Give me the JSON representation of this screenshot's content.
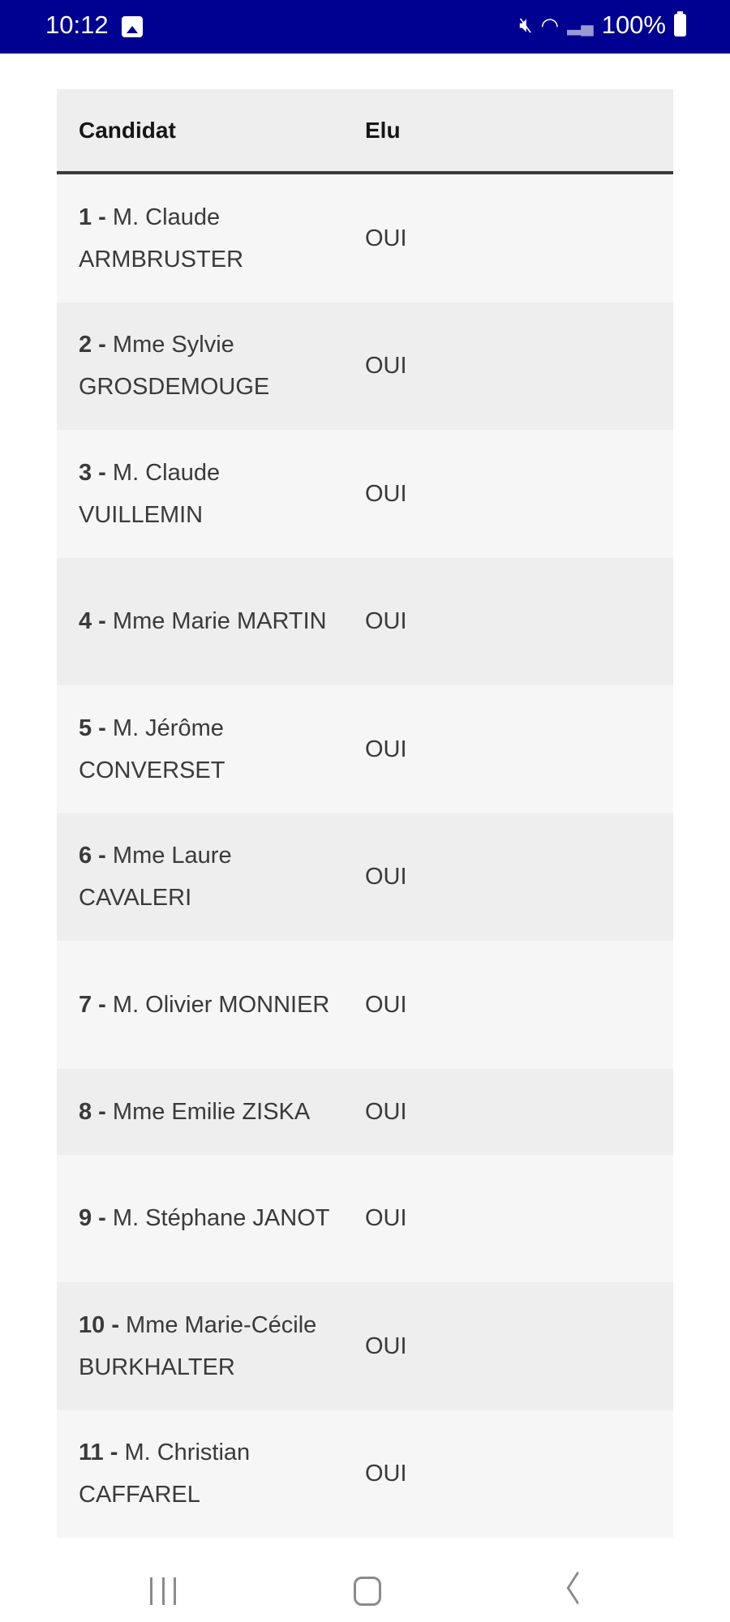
{
  "status_bar": {
    "time": "10:12",
    "battery": "100%"
  },
  "table": {
    "headers": {
      "candidate": "Candidat",
      "elected": "Elu"
    },
    "rows": [
      {
        "num": "1 -",
        "name": "M. Claude ARMBRUSTER",
        "elected": "OUI"
      },
      {
        "num": "2 -",
        "name": "Mme Sylvie GROSDEMOUGE",
        "elected": "OUI"
      },
      {
        "num": "3 -",
        "name": "M. Claude VUILLEMIN",
        "elected": "OUI"
      },
      {
        "num": "4 -",
        "name": "Mme Marie MARTIN",
        "elected": "OUI"
      },
      {
        "num": "5 -",
        "name": "M. Jérôme CONVERSET",
        "elected": "OUI"
      },
      {
        "num": "6 -",
        "name": "Mme Laure CAVALERI",
        "elected": "OUI"
      },
      {
        "num": "7 -",
        "name": "M. Olivier MONNIER",
        "elected": "OUI"
      },
      {
        "num": "8 -",
        "name": "Mme Emilie ZISKA",
        "elected": "OUI"
      },
      {
        "num": "9 -",
        "name": "M. Stéphane JANOT",
        "elected": "OUI"
      },
      {
        "num": "10 -",
        "name": "Mme Marie-Cécile BURKHALTER",
        "elected": "OUI"
      },
      {
        "num": "11 -",
        "name": "M. Christian CAFFAREL",
        "elected": "OUI"
      }
    ]
  },
  "colors": {
    "status_bar": "#000091",
    "row_light": "#f6f6f6",
    "row_dark": "#eeeeee"
  }
}
